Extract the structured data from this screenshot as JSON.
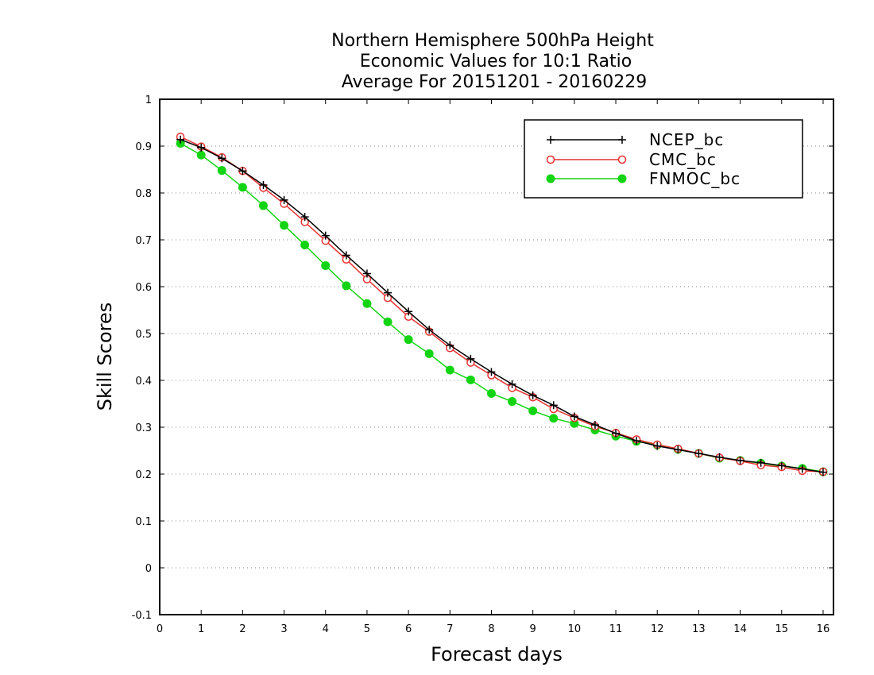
{
  "chart_data": {
    "type": "line",
    "title": [
      "Northern Hemisphere 500hPa Height",
      "Economic Values for 10:1 Ratio",
      "Average For 20151201 - 20160229"
    ],
    "xlabel": "Forecast days",
    "ylabel": "Skill Scores",
    "xlim": [
      0,
      16.25
    ],
    "ylim": [
      -0.1,
      1.0
    ],
    "xticks": [
      0,
      1,
      2,
      3,
      4,
      5,
      6,
      7,
      8,
      9,
      10,
      11,
      12,
      13,
      14,
      15,
      16
    ],
    "xtick_labels": [
      "0",
      "1",
      "2",
      "3",
      "4",
      "5",
      "6",
      "7",
      "8",
      "9",
      "10",
      "11",
      "12",
      "13",
      "14",
      "15",
      "16"
    ],
    "yticks": [
      -0.1,
      0,
      0.1,
      0.2,
      0.3,
      0.4,
      0.5,
      0.6,
      0.7,
      0.8,
      0.9,
      1
    ],
    "ytick_labels": [
      "-0.1",
      "0",
      "0.1",
      "0.2",
      "0.3",
      "0.4",
      "0.5",
      "0.6",
      "0.7",
      "0.8",
      "0.9",
      "1"
    ],
    "grid": true,
    "legend_position": "top-right",
    "x": [
      0.5,
      1,
      1.5,
      2,
      2.5,
      3,
      3.5,
      4,
      4.5,
      5,
      5.5,
      6,
      6.5,
      7,
      7.5,
      8,
      8.5,
      9,
      9.5,
      10,
      10.5,
      11,
      11.5,
      12,
      12.5,
      13,
      13.5,
      14,
      14.5,
      15,
      15.5,
      16
    ],
    "series": [
      {
        "name": "NCEP_bc",
        "color": "#000000",
        "marker": "plus",
        "values": [
          0.914,
          0.897,
          0.874,
          0.847,
          0.817,
          0.785,
          0.749,
          0.709,
          0.667,
          0.628,
          0.587,
          0.547,
          0.508,
          0.475,
          0.446,
          0.418,
          0.392,
          0.368,
          0.347,
          0.323,
          0.305,
          0.287,
          0.271,
          0.26,
          0.252,
          0.244,
          0.236,
          0.229,
          0.224,
          0.218,
          0.211,
          0.204
        ]
      },
      {
        "name": "CMC_bc",
        "color": "#e83030",
        "marker": "open-circle",
        "values": [
          0.92,
          0.899,
          0.876,
          0.847,
          0.811,
          0.777,
          0.738,
          0.698,
          0.658,
          0.616,
          0.576,
          0.536,
          0.504,
          0.469,
          0.438,
          0.411,
          0.384,
          0.364,
          0.339,
          0.32,
          0.302,
          0.288,
          0.274,
          0.263,
          0.254,
          0.244,
          0.235,
          0.228,
          0.219,
          0.215,
          0.207,
          0.205
        ]
      },
      {
        "name": "FNMOC_bc",
        "color": "#12d412",
        "marker": "filled-circle",
        "values": [
          0.906,
          0.881,
          0.848,
          0.812,
          0.773,
          0.731,
          0.689,
          0.645,
          0.602,
          0.564,
          0.525,
          0.487,
          0.457,
          0.422,
          0.401,
          0.372,
          0.355,
          0.335,
          0.319,
          0.308,
          0.294,
          0.281,
          0.27,
          0.262,
          0.253,
          0.244,
          0.234,
          0.229,
          0.223,
          0.217,
          0.212,
          0.205
        ]
      }
    ]
  }
}
